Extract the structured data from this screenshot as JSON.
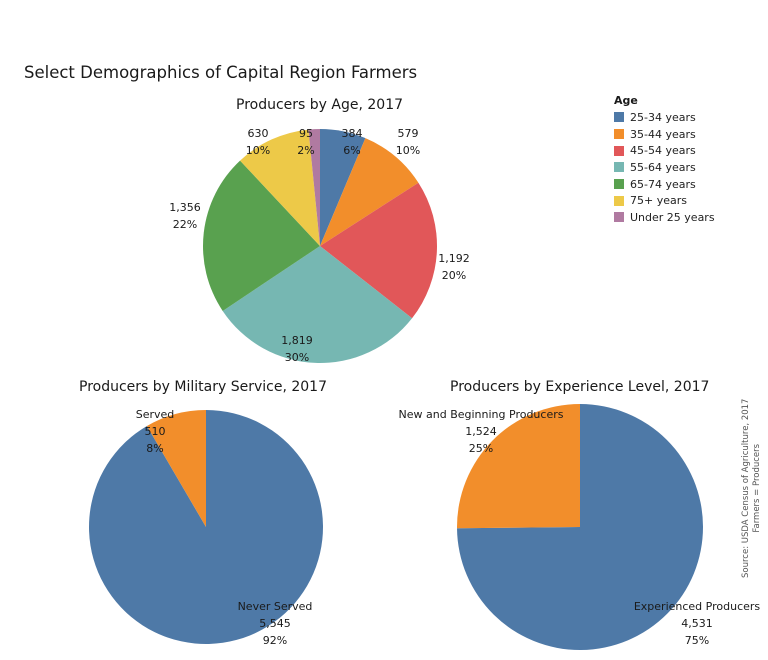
{
  "title": "Select Demographics of Capital Region Farmers",
  "source": {
    "line1": "Source: USDA Census of Agriculture, 2017",
    "line2": "Farmers = Producers"
  },
  "legend": {
    "title": "Age",
    "items": [
      {
        "label": "25-34 years",
        "color": "#4E79A7"
      },
      {
        "label": "35-44 years",
        "color": "#F28E2B"
      },
      {
        "label": "45-54 years",
        "color": "#E15759"
      },
      {
        "label": "55-64 years",
        "color": "#76B7B2"
      },
      {
        "label": "65-74 years",
        "color": "#59A14F"
      },
      {
        "label": "75+ years",
        "color": "#EDC948"
      },
      {
        "label": "Under 25 years",
        "color": "#B07AA1"
      }
    ]
  },
  "chart_data": [
    {
      "type": "pie",
      "title": "Producers by Age, 2017",
      "legend_title": "Age",
      "legend_position": "right",
      "slices": [
        {
          "label": "25-34 years",
          "value": 384,
          "value_text": "384",
          "pct_text": "6%",
          "color": "#4E79A7"
        },
        {
          "label": "35-44 years",
          "value": 579,
          "value_text": "579",
          "pct_text": "10%",
          "color": "#F28E2B"
        },
        {
          "label": "45-54 years",
          "value": 1192,
          "value_text": "1,192",
          "pct_text": "20%",
          "color": "#E15759"
        },
        {
          "label": "55-64 years",
          "value": 1819,
          "value_text": "1,819",
          "pct_text": "30%",
          "color": "#76B7B2"
        },
        {
          "label": "65-74 years",
          "value": 1356,
          "value_text": "1,356",
          "pct_text": "22%",
          "color": "#59A14F"
        },
        {
          "label": "75+ years",
          "value": 630,
          "value_text": "630",
          "pct_text": "10%",
          "color": "#EDC948"
        },
        {
          "label": "Under 25 years",
          "value": 95,
          "value_text": "95",
          "pct_text": "2%",
          "color": "#B07AA1"
        }
      ]
    },
    {
      "type": "pie",
      "title": "Producers by Military Service, 2017",
      "slices": [
        {
          "label": "Never Served",
          "value": 5545,
          "value_text": "5,545",
          "pct_text": "92%",
          "color": "#4E79A7"
        },
        {
          "label": "Served",
          "value": 510,
          "value_text": "510",
          "pct_text": "8%",
          "color": "#F28E2B"
        }
      ]
    },
    {
      "type": "pie",
      "title": "Producers by Experience Level, 2017",
      "slices": [
        {
          "label": "Experienced Producers",
          "value": 4531,
          "value_text": "4,531",
          "pct_text": "75%",
          "color": "#4E79A7"
        },
        {
          "label": "New and Beginning Producers",
          "value": 1524,
          "value_text": "1,524",
          "pct_text": "25%",
          "color": "#F28E2B"
        }
      ]
    }
  ]
}
